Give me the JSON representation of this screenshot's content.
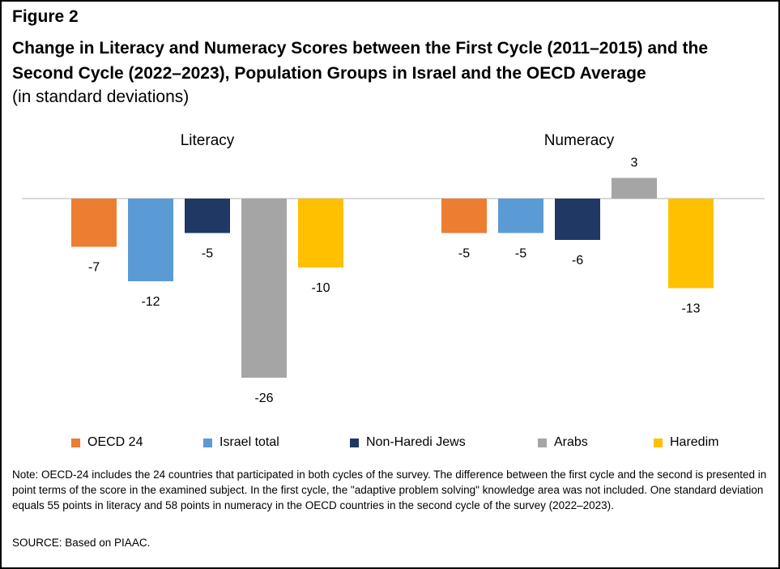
{
  "figure_label": "Figure 2",
  "title": "Change in Literacy and Numeracy Scores between the First Cycle (2011–2015) and the Second Cycle (2022–2023), Population Groups in Israel and the OECD Average",
  "subtitle": "(in standard deviations)",
  "chart_data": {
    "type": "bar",
    "groups": [
      "Literacy",
      "Numeracy"
    ],
    "series": [
      {
        "name": "OECD 24",
        "color": "#ED7D31",
        "values": [
          -7,
          -5
        ]
      },
      {
        "name": "Israel total",
        "color": "#5B9BD5",
        "values": [
          -12,
          -5
        ]
      },
      {
        "name": "Non-Haredi Jews",
        "color": "#1F3864",
        "values": [
          -5,
          -6
        ]
      },
      {
        "name": "Arabs",
        "color": "#A5A5A5",
        "values": [
          -26,
          3
        ]
      },
      {
        "name": "Haredim",
        "color": "#FFC000",
        "values": [
          -10,
          -13
        ]
      }
    ],
    "ylim": [
      -28,
      4
    ],
    "grid": false,
    "legend_position": "bottom"
  },
  "note": "Note: OECD-24 includes the 24 countries that participated in both cycles of the survey.  The difference between the first cycle and the second is presented in point terms of the score in the examined subject.  In the first cycle, the \"adaptive problem solving\" knowledge area was not included.  One standard deviation equals 55 points in literacy and 58 points in numeracy in the OECD countries in the second cycle of the survey (2022–2023).",
  "source": "SOURCE: Based on PIAAC."
}
